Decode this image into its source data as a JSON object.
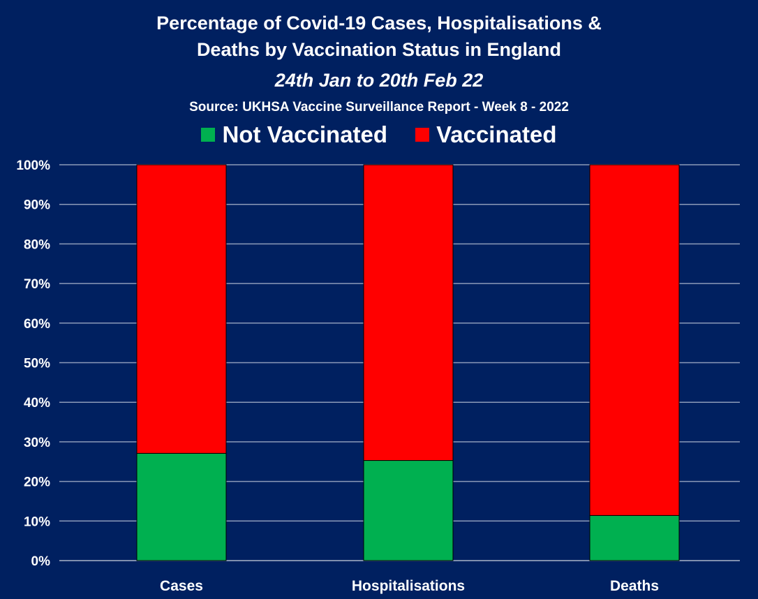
{
  "chart_data": {
    "type": "bar",
    "stacked": true,
    "title": "Percentage of Covid-19 Cases, Hospitalisations &",
    "title_line2": "Deaths by Vaccination Status in England",
    "subtitle": "24th Jan to 20th Feb 22",
    "source": "Source: UKHSA Vaccine Surveillance Report - Week 8 - 2022",
    "categories": [
      "Cases",
      "Hospitalisations",
      "Deaths"
    ],
    "series": [
      {
        "name": "Not Vaccinated",
        "color": "#00B050",
        "values": [
          27.1,
          25.3,
          11.4
        ]
      },
      {
        "name": "Vaccinated",
        "color": "#FF0000",
        "values": [
          72.9,
          74.7,
          88.6
        ]
      }
    ],
    "ylim": [
      0,
      100
    ],
    "yticks": [
      "0%",
      "10%",
      "20%",
      "30%",
      "40%",
      "50%",
      "60%",
      "70%",
      "80%",
      "90%",
      "100%"
    ],
    "grid": true,
    "legend_position": "top",
    "xlabel": "",
    "ylabel": ""
  }
}
